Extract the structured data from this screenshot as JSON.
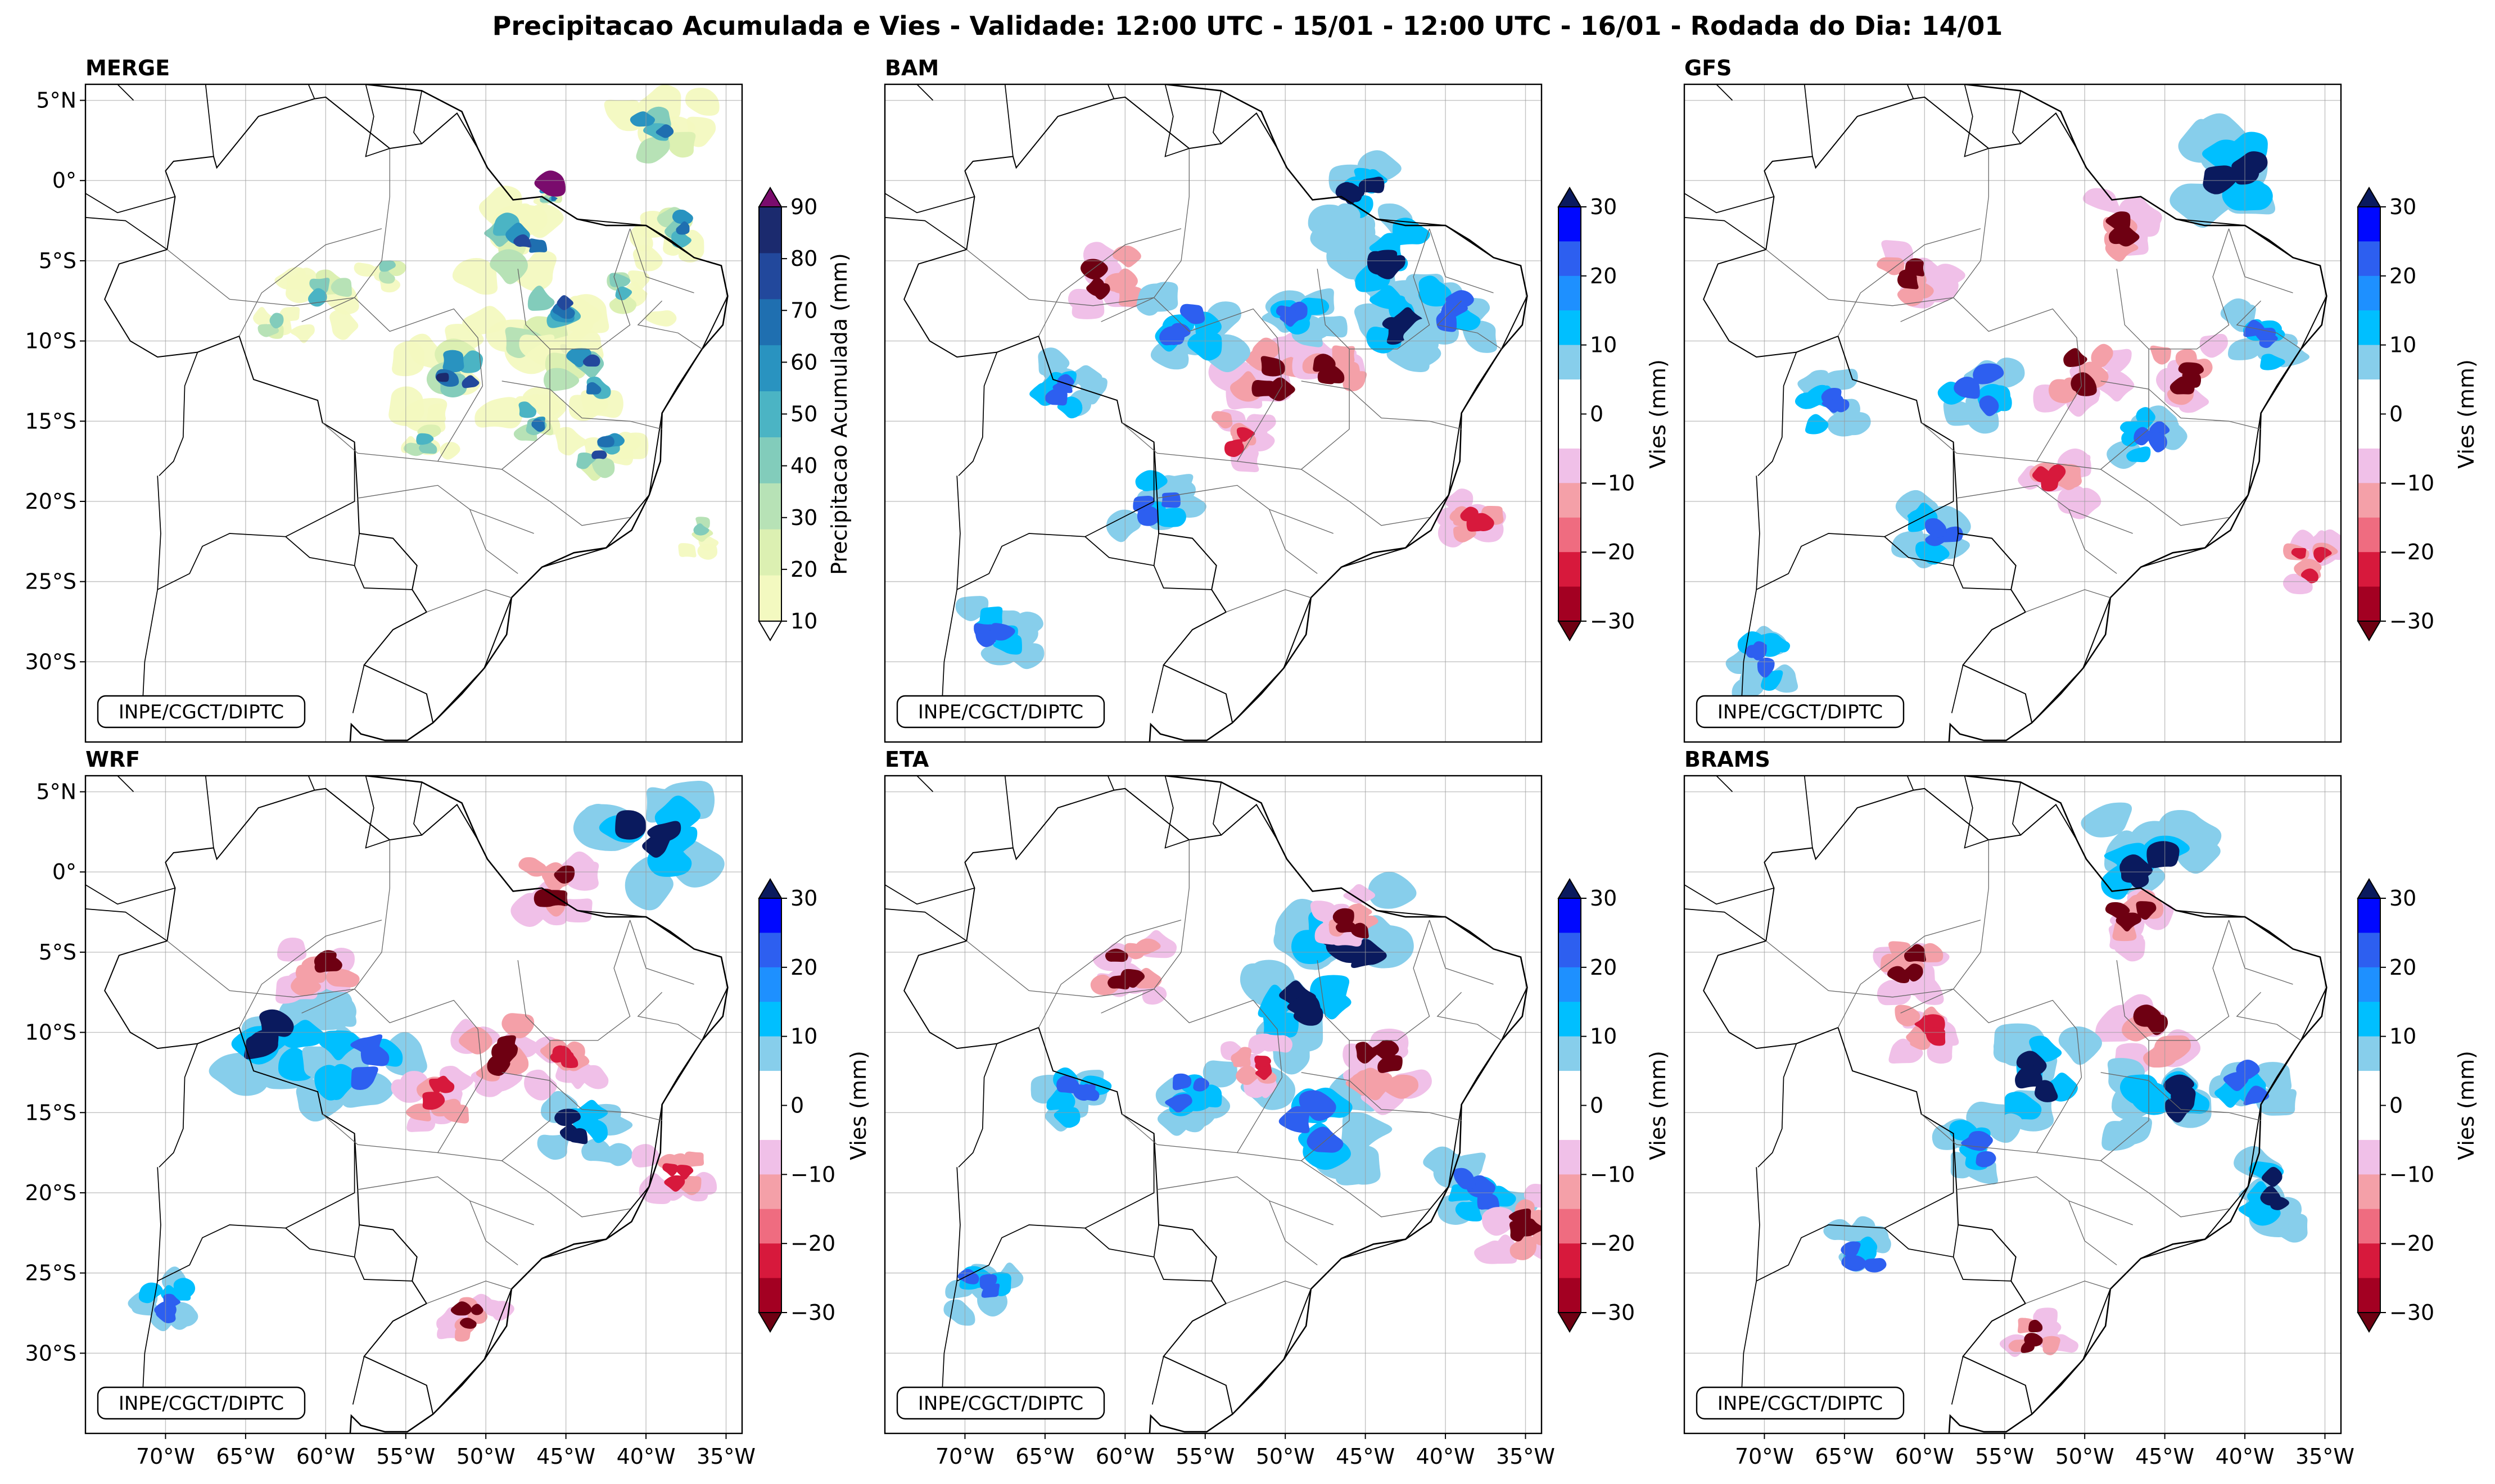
{
  "title": "Precipitacao Acumulada e Vies - Validade: 12:00 UTC - 15/01 - 12:00 UTC - 16/01 - Rodada do Dia: 14/01",
  "credit": "INPE/CGCT/DIPTC",
  "lat_ticks": [
    "5°N",
    "0°",
    "5°S",
    "10°S",
    "15°S",
    "20°S",
    "25°S",
    "30°S"
  ],
  "lon_ticks": [
    "70°W",
    "65°W",
    "60°W",
    "55°W",
    "50°W",
    "45°W",
    "40°W",
    "35°W"
  ],
  "panels": [
    {
      "name": "MERGE",
      "kind": "precip"
    },
    {
      "name": "BAM",
      "kind": "bias"
    },
    {
      "name": "GFS",
      "kind": "bias"
    },
    {
      "name": "WRF",
      "kind": "bias"
    },
    {
      "name": "ETA",
      "kind": "bias"
    },
    {
      "name": "BRAMS",
      "kind": "bias"
    }
  ],
  "colorbars": {
    "precip": {
      "label": "Precipitacao Acumulada (mm)",
      "ticks": [
        "10",
        "20",
        "30",
        "40",
        "50",
        "60",
        "70",
        "80",
        "90"
      ],
      "colors": [
        "#f3f9c0",
        "#dcf0b2",
        "#b7e2b6",
        "#82ccbb",
        "#4bb4c4",
        "#2993c0",
        "#1f6fb0",
        "#22489c",
        "#1b2a6e"
      ],
      "under": "#ffffff",
      "over": "#7a0c6d"
    },
    "bias": {
      "label": "Vies (mm)",
      "ticks": [
        "30",
        "20",
        "10",
        "0",
        "−10",
        "−20",
        "−30"
      ],
      "colors": [
        "#0008ff",
        "#2d5ff0",
        "#1e90ff",
        "#00bfff",
        "#87ceeb",
        "#ffffff",
        "#ffffff",
        "#f0c0e8",
        "#f4a0a8",
        "#ef6c80",
        "#d7193c",
        "#a30022"
      ],
      "over": "#0a1a5e",
      "under": "#6e0012"
    }
  }
}
